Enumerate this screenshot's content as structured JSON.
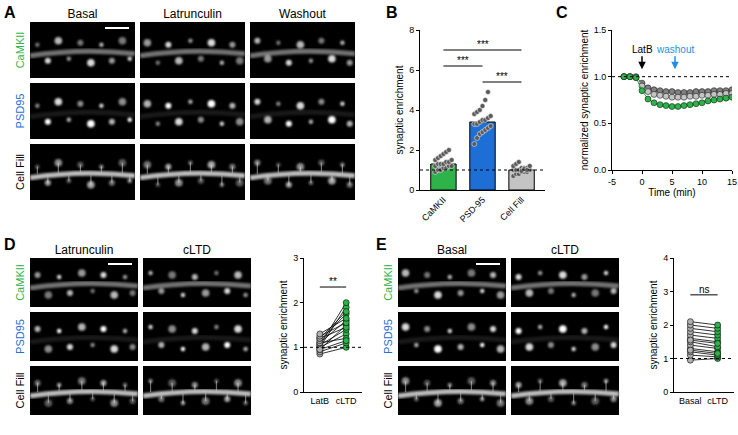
{
  "images": [
    {
      "panel": "A",
      "columns": [
        "Basal",
        "Latrunculin",
        "Washout"
      ],
      "rows": [
        {
          "label": "CaMKII",
          "color": "#2db34a"
        },
        {
          "label": "PSD95",
          "color": "#1d6fd6"
        },
        {
          "label": "Cell Fill",
          "color": "#000000"
        }
      ]
    },
    {
      "panel": "D",
      "columns": [
        "Latrunculin",
        "cLTD"
      ],
      "rows": [
        {
          "label": "CaMKII",
          "color": "#2db34a"
        },
        {
          "label": "PSD95",
          "color": "#1d6fd6"
        },
        {
          "label": "Cell Fill",
          "color": "#000000"
        }
      ]
    },
    {
      "panel": "E",
      "columns": [
        "Basal",
        "cLTD"
      ],
      "rows": [
        {
          "label": "CaMKII",
          "color": "#2db34a"
        },
        {
          "label": "PSD95",
          "color": "#1d6fd6"
        },
        {
          "label": "Cell Fill",
          "color": "#000000"
        }
      ]
    }
  ],
  "chart_data": [
    {
      "panel": "B",
      "type": "bar",
      "categories": [
        "CaMKII",
        "PSD-95",
        "Cell Fill"
      ],
      "values": [
        1.3,
        3.4,
        1.0
      ],
      "colors": [
        "#2db34a",
        "#1d6fd6",
        "#c4c4c4"
      ],
      "points": [
        [
          0.9,
          1.0,
          1.0,
          1.1,
          1.1,
          1.2,
          1.2,
          1.2,
          1.3,
          1.3,
          1.3,
          1.4,
          1.4,
          1.5,
          1.5,
          1.6,
          1.7,
          1.8,
          1.9,
          2.0
        ],
        [
          2.3,
          2.6,
          2.8,
          2.9,
          3.0,
          3.1,
          3.2,
          3.3,
          3.3,
          3.4,
          3.5,
          3.5,
          3.6,
          3.7,
          3.8,
          3.9,
          4.0,
          4.2,
          4.5,
          4.9
        ],
        [
          0.7,
          0.8,
          0.8,
          0.9,
          0.9,
          0.9,
          1.0,
          1.0,
          1.0,
          1.0,
          1.1,
          1.1,
          1.1,
          1.2,
          1.2,
          1.3,
          1.4,
          0.95,
          1.05,
          1.0
        ]
      ],
      "ylabel": "synaptic enrichment",
      "ylim": [
        0,
        8
      ],
      "yticks": [
        0,
        2,
        4,
        6,
        8
      ],
      "reference_line": 1,
      "comparisons": [
        {
          "between": [
            "CaMKII",
            "PSD-95"
          ],
          "y": 6.2,
          "text": "***"
        },
        {
          "between": [
            "CaMKII",
            "Cell Fill"
          ],
          "y": 7.0,
          "text": "***"
        },
        {
          "between": [
            "PSD-95",
            "Cell Fill"
          ],
          "y": 5.4,
          "text": "***"
        }
      ]
    },
    {
      "panel": "C",
      "type": "line",
      "x": [
        -3,
        -2,
        -1,
        0,
        1,
        2,
        3,
        4,
        5,
        6,
        7,
        8,
        9,
        10,
        11,
        12,
        13,
        14,
        15
      ],
      "series": [
        {
          "color": "#808080",
          "values": [
            1.0,
            1.0,
            1.0,
            0.93,
            0.88,
            0.86,
            0.85,
            0.84,
            0.84,
            0.83,
            0.83,
            0.83,
            0.84,
            0.84,
            0.84,
            0.85,
            0.85,
            0.85,
            0.86
          ]
        },
        {
          "color": "#c4c4c4",
          "values": [
            1.0,
            1.0,
            0.99,
            0.9,
            0.84,
            0.81,
            0.8,
            0.79,
            0.78,
            0.78,
            0.78,
            0.79,
            0.79,
            0.8,
            0.8,
            0.81,
            0.81,
            0.82,
            0.82
          ]
        },
        {
          "color": "#2db34a",
          "values": [
            1.0,
            1.0,
            0.99,
            0.85,
            0.76,
            0.72,
            0.7,
            0.69,
            0.68,
            0.68,
            0.69,
            0.7,
            0.71,
            0.72,
            0.74,
            0.75,
            0.76,
            0.77,
            0.78
          ]
        }
      ],
      "marker": "circle",
      "xlabel": "Time (min)",
      "ylabel": "normalized synaptic enrichment",
      "xlim": [
        -5,
        15
      ],
      "xticks": [
        -5,
        0,
        5,
        10,
        15
      ],
      "ylim": [
        0,
        1.5
      ],
      "yticks": [
        {
          "value": 0,
          "label": "0.0"
        },
        {
          "value": 0.5,
          "label": "0.5"
        },
        {
          "value": 1,
          "label": "1.0"
        },
        {
          "value": 1.5,
          "label": "1.5"
        }
      ],
      "reference_line": 1,
      "annotations": [
        {
          "text": "LatB",
          "x": 0,
          "y": 1.08,
          "color": "#000000"
        },
        {
          "text": "washout",
          "x": 5.5,
          "y": 1.08,
          "color": "#1f8fe0"
        }
      ]
    },
    {
      "type": "paired",
      "categories": [
        "LatB",
        "cLTD"
      ],
      "colors": [
        "#b0b0b0",
        "#2db34a"
      ],
      "points": [
        [
          0.85,
          0.9,
          0.95,
          1.0,
          1.0,
          1.05,
          1.05,
          1.1,
          1.1,
          1.15,
          1.2,
          1.2,
          1.25,
          1.3,
          0.95
        ],
        [
          1.0,
          1.1,
          1.5,
          1.3,
          1.9,
          1.4,
          2.0,
          1.6,
          1.2,
          1.75,
          1.45,
          1.8,
          1.55,
          1.65,
          1.15
        ]
      ],
      "ylabel": "synaptic enrichment",
      "ylim": [
        0,
        3
      ],
      "yticks": [
        0,
        1,
        2,
        3
      ],
      "reference_line": 1,
      "comparison": {
        "text": "**",
        "y": 2.35
      }
    },
    {
      "type": "paired",
      "categories": [
        "Basal",
        "cLTD"
      ],
      "colors": [
        "#b0b0b0",
        "#2db34a"
      ],
      "points": [
        [
          0.95,
          1.1,
          1.2,
          1.3,
          1.4,
          1.5,
          1.6,
          1.7,
          1.8,
          1.9,
          2.0,
          2.1,
          1.25,
          1.55
        ],
        [
          1.0,
          1.05,
          1.1,
          1.2,
          1.3,
          1.35,
          1.5,
          1.6,
          1.7,
          1.8,
          1.9,
          2.0,
          1.15,
          1.45
        ]
      ],
      "ylabel": "synaptic enrichment",
      "ylim": [
        0,
        4
      ],
      "yticks": [
        0,
        1,
        2,
        3,
        4
      ],
      "reference_line": 1,
      "comparison": {
        "text": "ns",
        "y": 2.9
      }
    }
  ]
}
